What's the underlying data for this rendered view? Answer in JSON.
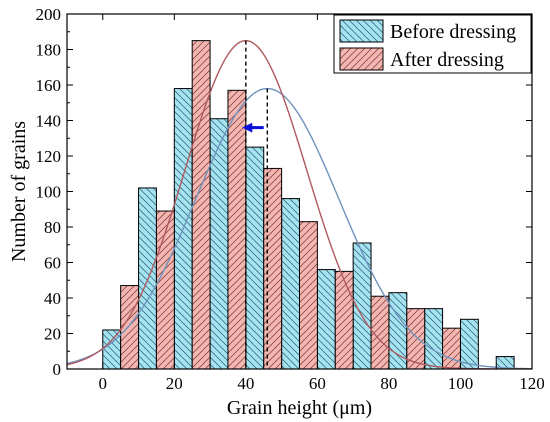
{
  "chart_data": {
    "type": "bar",
    "xlabel": "Grain height (μm)",
    "ylabel": "Number of grains",
    "xlim": [
      -10,
      120
    ],
    "ylim": [
      0,
      200
    ],
    "x_ticks": [
      0,
      20,
      40,
      60,
      80,
      100,
      120
    ],
    "y_ticks": [
      0,
      20,
      40,
      60,
      80,
      100,
      120,
      140,
      160,
      180,
      200
    ],
    "grid": false,
    "legend_position": "top-right",
    "bin_width": 5,
    "series": [
      {
        "name": "Before dressing",
        "bar_color": "#a6e3f0",
        "hatch": "backslash",
        "curve_color": "#6f93bd",
        "bin_centers": [
          2.5,
          12.5,
          22.5,
          32.5,
          42.5,
          52.5,
          62.5,
          72.5,
          82.5,
          92.5,
          102.5,
          112.5
        ],
        "values": [
          22,
          102,
          158,
          141,
          125,
          96,
          56,
          71,
          43,
          34,
          28,
          7
        ],
        "fit_mean": 46,
        "fit_peak": 158,
        "fit_sigma": 20
      },
      {
        "name": "After dressing",
        "bar_color": "#f4b6b0",
        "hatch": "slash",
        "curve_color": "#b05a5f",
        "bin_centers": [
          7.5,
          17.5,
          27.5,
          37.5,
          47.5,
          57.5,
          67.5,
          77.5,
          87.5,
          97.5
        ],
        "values": [
          47,
          89,
          185,
          157,
          113,
          83,
          55,
          41,
          34,
          23
        ],
        "fit_mean": 40,
        "fit_peak": 185,
        "fit_sigma": 17
      }
    ],
    "annotations": {
      "mean_lines": [
        40,
        46
      ],
      "arrow": {
        "from_x": 45,
        "to_x": 39,
        "y": 136,
        "color": "#0a10d8"
      }
    }
  }
}
